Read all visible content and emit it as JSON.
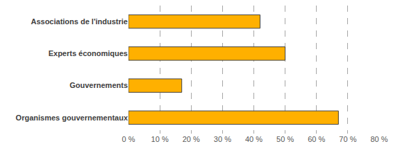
{
  "chart_data": {
    "type": "bar",
    "orientation": "horizontal",
    "categories": [
      "Associations de l'industrie",
      "Experts économiques",
      "Gouvernements",
      "Organismes gouvernementaux"
    ],
    "values": [
      42,
      50,
      17,
      67
    ],
    "color": "#ffb000",
    "xlim": [
      0,
      80
    ],
    "xticks": [
      {
        "value": 0,
        "label": "0 %"
      },
      {
        "value": 10,
        "label": "10 %"
      },
      {
        "value": 20,
        "label": "20 %"
      },
      {
        "value": 30,
        "label": "30 %"
      },
      {
        "value": 40,
        "label": "40 %"
      },
      {
        "value": 50,
        "label": "50 %"
      },
      {
        "value": 60,
        "label": "60 %"
      },
      {
        "value": 70,
        "label": "70 %"
      },
      {
        "value": 80,
        "label": "80 %"
      }
    ],
    "grid": true
  }
}
